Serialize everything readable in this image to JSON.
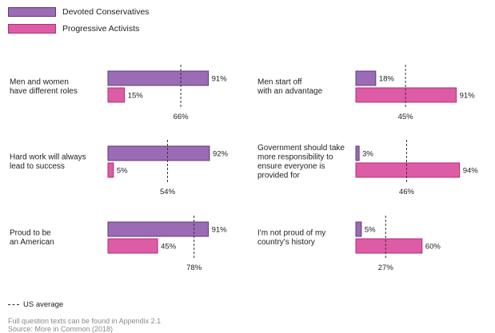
{
  "legend": {
    "series1": {
      "label": "Devoted Conservatives",
      "color": "#9c6bb5",
      "border": "#5c3b78"
    },
    "series2": {
      "label": "Progressive Activists",
      "color": "#de5ca6",
      "border": "#b02e77"
    }
  },
  "us_average_label": "US average",
  "footnote": "Full question texts can be found in Appendix 2.1",
  "source": "Source: More in Common (2018)",
  "chart_data": [
    {
      "type": "bar",
      "label": [
        "Men and women",
        "have different roles"
      ],
      "values": [
        91,
        15
      ],
      "us_average": 66,
      "xlim": [
        0,
        100
      ]
    },
    {
      "type": "bar",
      "label": [
        "Hard work will always",
        "lead to success"
      ],
      "values": [
        92,
        5
      ],
      "us_average": 54,
      "xlim": [
        0,
        100
      ]
    },
    {
      "type": "bar",
      "label": [
        "Proud to be",
        "an American"
      ],
      "values": [
        91,
        45
      ],
      "us_average": 78,
      "xlim": [
        0,
        100
      ]
    },
    {
      "type": "bar",
      "label": [
        "Men start off",
        "with an advantage"
      ],
      "values": [
        18,
        91
      ],
      "us_average": 45,
      "xlim": [
        0,
        100
      ]
    },
    {
      "type": "bar",
      "label": [
        "Government should take",
        "more responsibility to",
        "ensure everyone is",
        "provided for"
      ],
      "values": [
        3,
        94
      ],
      "us_average": 46,
      "xlim": [
        0,
        100
      ]
    },
    {
      "type": "bar",
      "label": [
        "I'm not proud of my",
        "country's history"
      ],
      "values": [
        5,
        60
      ],
      "us_average": 27,
      "xlim": [
        0,
        100
      ]
    }
  ]
}
